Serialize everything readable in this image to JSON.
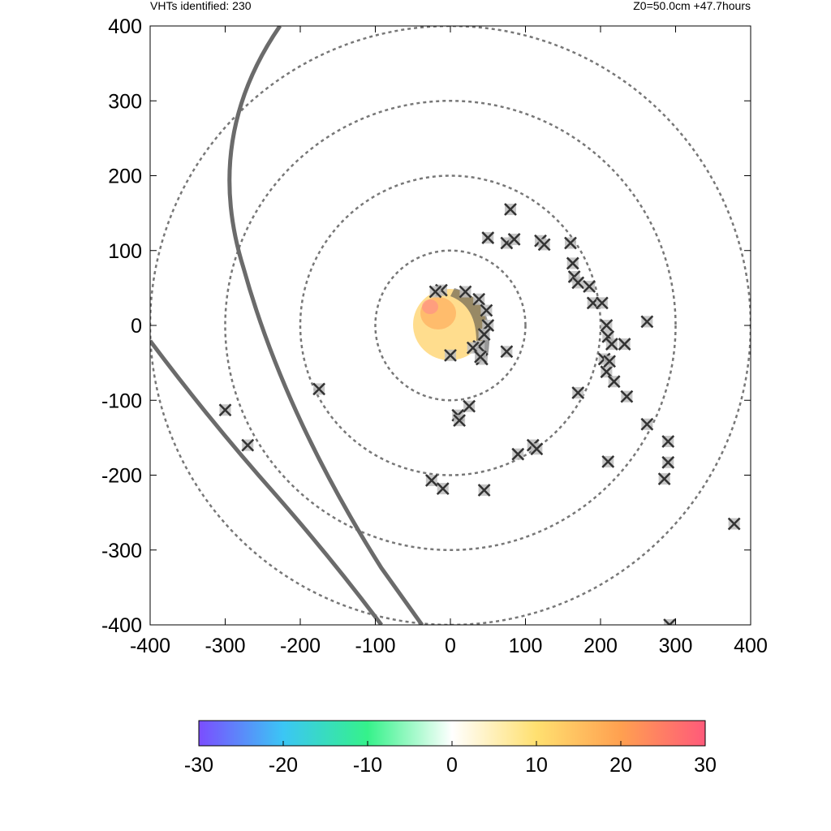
{
  "header": {
    "vht_count": "VHTs identified: 230",
    "run_info": "Z0=50.0cm  +47.7hours"
  },
  "chart_data": {
    "type": "scatter",
    "title": "",
    "xlabel": "",
    "ylabel": "",
    "xlim": [
      -400,
      400
    ],
    "ylim": [
      -400,
      400
    ],
    "x_ticks": [
      "-400",
      "-300",
      "-200",
      "-100",
      "0",
      "100",
      "200",
      "300",
      "400"
    ],
    "y_ticks": [
      "400",
      "300",
      "200",
      "100",
      "0",
      "-100",
      "-200",
      "-300",
      "-400"
    ],
    "grid": false,
    "range_rings_radius": [
      100,
      200,
      300,
      400
    ],
    "range_ring_color": "#777777",
    "colorbar": {
      "min": -30,
      "max": 30,
      "ticks": [
        "-30",
        "-20",
        "-10",
        "0",
        "10",
        "20",
        "30"
      ],
      "colors": [
        "#7b4dff",
        "#3bc6f5",
        "#35f28a",
        "#ffffff",
        "#ffe070",
        "#ffa050",
        "#ff5a7a"
      ]
    },
    "vht_marker_color": "#333333",
    "vht_points": [
      [
        -300,
        -113
      ],
      [
        -270,
        -160
      ],
      [
        -175,
        -85
      ],
      [
        -25,
        -207
      ],
      [
        -10,
        -218
      ],
      [
        0,
        -40
      ],
      [
        10,
        -120
      ],
      [
        12,
        -127
      ],
      [
        25,
        -108
      ],
      [
        38,
        -28
      ],
      [
        42,
        -45
      ],
      [
        45,
        -220
      ],
      [
        75,
        -35
      ],
      [
        90,
        -172
      ],
      [
        110,
        -160
      ],
      [
        115,
        -165
      ],
      [
        80,
        155
      ],
      [
        50,
        117
      ],
      [
        75,
        110
      ],
      [
        85,
        115
      ],
      [
        120,
        113
      ],
      [
        125,
        108
      ],
      [
        160,
        110
      ],
      [
        163,
        83
      ],
      [
        165,
        65
      ],
      [
        170,
        57
      ],
      [
        185,
        52
      ],
      [
        190,
        30
      ],
      [
        202,
        30
      ],
      [
        208,
        0
      ],
      [
        210,
        -15
      ],
      [
        215,
        -25
      ],
      [
        232,
        -25
      ],
      [
        205,
        -45
      ],
      [
        208,
        -62
      ],
      [
        212,
        -48
      ],
      [
        218,
        -75
      ],
      [
        235,
        -95
      ],
      [
        262,
        5
      ],
      [
        262,
        -132
      ],
      [
        290,
        -155
      ],
      [
        290,
        -183
      ],
      [
        285,
        -205
      ],
      [
        378,
        -265
      ],
      [
        292,
        -400
      ],
      [
        170,
        -90
      ],
      [
        210,
        -182
      ],
      [
        -12,
        47
      ],
      [
        -20,
        45
      ],
      [
        20,
        45
      ],
      [
        38,
        35
      ],
      [
        48,
        20
      ],
      [
        50,
        0
      ],
      [
        45,
        -12
      ],
      [
        30,
        -30
      ],
      [
        40,
        -42
      ]
    ],
    "annotations": [
      "VHTs identified: 230",
      "Z0=50.0cm  +47.7hours"
    ]
  }
}
